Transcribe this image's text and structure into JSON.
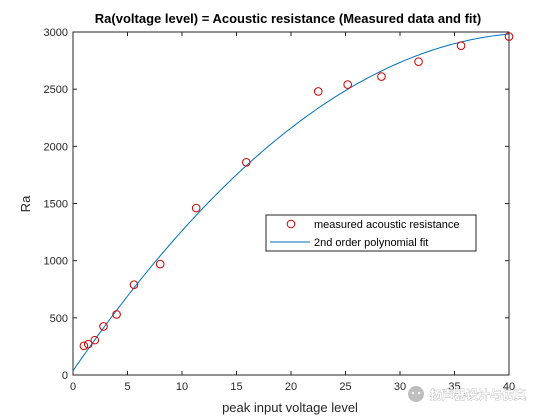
{
  "chart_data": {
    "type": "scatter",
    "title": "Ra(voltage level) = Acoustic resistance (Measured data and fit)",
    "xlabel": "peak input voltage level",
    "ylabel": "Ra",
    "xlim": [
      0,
      40
    ],
    "ylim": [
      0,
      3000
    ],
    "xticks": [
      0,
      5,
      10,
      15,
      20,
      25,
      30,
      35,
      40
    ],
    "yticks": [
      0,
      500,
      1000,
      1500,
      2000,
      2500,
      3000
    ],
    "grid": false,
    "legend_position": "center-right",
    "series": [
      {
        "name": "measured acoustic resistance",
        "kind": "scatter",
        "marker": "circle",
        "color": "#cc0000",
        "x": [
          1.0,
          1.4,
          2.0,
          2.8,
          4.0,
          5.6,
          8.0,
          11.3,
          15.9,
          22.5,
          25.2,
          28.3,
          31.7,
          35.6,
          40.0
        ],
        "y": [
          255,
          270,
          305,
          425,
          530,
          790,
          970,
          1460,
          1860,
          2480,
          2540,
          2610,
          2740,
          2880,
          2960
        ]
      },
      {
        "name": "2nd order polynomial fit",
        "kind": "line",
        "color": "#0072bd",
        "coefficients": [
          37,
          138.7,
          -1.627
        ]
      }
    ]
  },
  "watermark": {
    "text": "扬声器设计与仿真",
    "icon": "wechat-icon"
  }
}
